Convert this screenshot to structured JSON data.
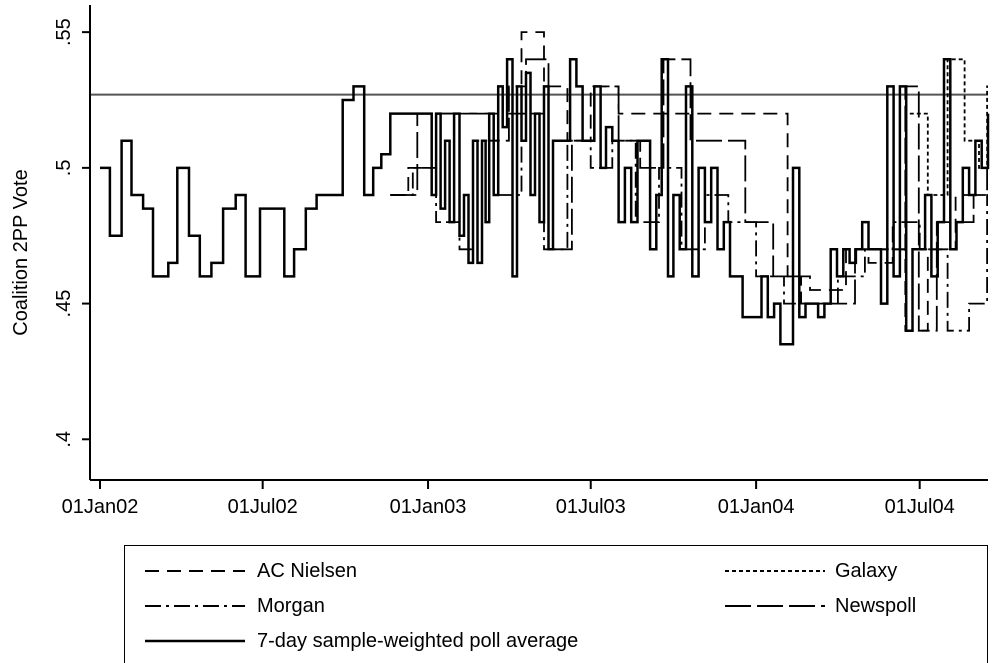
{
  "chart_data": {
    "type": "line",
    "title": "",
    "xlabel": "",
    "ylabel": "Coalition 2PP Vote",
    "x_range": [
      "2002-01-01",
      "2004-09-15"
    ],
    "ylim": [
      0.385,
      0.56
    ],
    "x_ticks": [
      {
        "date": "2002-01-01",
        "label": "01Jan02"
      },
      {
        "date": "2002-07-01",
        "label": "01Jul02"
      },
      {
        "date": "2003-01-01",
        "label": "01Jan03"
      },
      {
        "date": "2003-07-01",
        "label": "01Jul03"
      },
      {
        "date": "2004-01-01",
        "label": "01Jan04"
      },
      {
        "date": "2004-07-01",
        "label": "01Jul04"
      }
    ],
    "y_ticks": [
      {
        "value": 0.4,
        "label": ".4"
      },
      {
        "value": 0.45,
        "label": ".45"
      },
      {
        "value": 0.5,
        "label": ".5"
      },
      {
        "value": 0.55,
        "label": ".55"
      }
    ],
    "reference_line": {
      "y": 0.527,
      "color": "#555555"
    },
    "grid": false,
    "legend_position": "bottom",
    "series": [
      {
        "name": "AC Nielsen",
        "dash": "long-dash",
        "points": [
          [
            "2002-11-20",
            0.49
          ],
          [
            "2002-12-10",
            0.5
          ],
          [
            "2003-01-05",
            0.52
          ],
          [
            "2003-02-01",
            0.52
          ],
          [
            "2003-03-20",
            0.52
          ],
          [
            "2003-04-15",
            0.55
          ],
          [
            "2003-05-10",
            0.53
          ],
          [
            "2003-06-05",
            0.51
          ],
          [
            "2003-07-01",
            0.53
          ],
          [
            "2003-08-01",
            0.52
          ],
          [
            "2003-09-10",
            0.52
          ],
          [
            "2003-10-10",
            0.52
          ],
          [
            "2003-11-15",
            0.52
          ],
          [
            "2003-12-15",
            0.52
          ],
          [
            "2004-01-20",
            0.52
          ],
          [
            "2004-02-05",
            0.46
          ],
          [
            "2004-03-01",
            0.455
          ],
          [
            "2004-04-10",
            0.47
          ],
          [
            "2004-05-05",
            0.465
          ],
          [
            "2004-06-01",
            0.47
          ],
          [
            "2004-06-15",
            0.44
          ],
          [
            "2004-07-10",
            0.47
          ],
          [
            "2004-08-10",
            0.49
          ],
          [
            "2004-09-01",
            0.5
          ]
        ]
      },
      {
        "name": "Galaxy",
        "dash": "short-dash",
        "points": [
          [
            "2004-06-20",
            0.52
          ],
          [
            "2004-07-10",
            0.49
          ],
          [
            "2004-08-01",
            0.54
          ],
          [
            "2004-08-20",
            0.51
          ],
          [
            "2004-09-05",
            0.5
          ],
          [
            "2004-09-14",
            0.53
          ]
        ]
      },
      {
        "name": "Morgan",
        "dash": "dash-dot",
        "points": [
          [
            "2002-11-20",
            0.49
          ],
          [
            "2002-12-15",
            0.5
          ],
          [
            "2003-01-10",
            0.48
          ],
          [
            "2003-02-05",
            0.47
          ],
          [
            "2003-02-25",
            0.51
          ],
          [
            "2003-03-20",
            0.49
          ],
          [
            "2003-04-15",
            0.52
          ],
          [
            "2003-05-10",
            0.47
          ],
          [
            "2003-06-05",
            0.51
          ],
          [
            "2003-07-01",
            0.5
          ],
          [
            "2003-07-25",
            0.51
          ],
          [
            "2003-08-20",
            0.48
          ],
          [
            "2003-09-15",
            0.5
          ],
          [
            "2003-10-10",
            0.47
          ],
          [
            "2003-11-05",
            0.49
          ],
          [
            "2003-12-01",
            0.48
          ],
          [
            "2004-01-01",
            0.46
          ],
          [
            "2004-02-01",
            0.45
          ],
          [
            "2004-03-01",
            0.45
          ],
          [
            "2004-04-01",
            0.46
          ],
          [
            "2004-05-01",
            0.47
          ],
          [
            "2004-06-01",
            0.48
          ],
          [
            "2004-07-01",
            0.47
          ],
          [
            "2004-08-01",
            0.44
          ],
          [
            "2004-08-25",
            0.45
          ],
          [
            "2004-09-14",
            0.49
          ]
        ]
      },
      {
        "name": "Newspoll",
        "dash": "longer-dash",
        "points": [
          [
            "2002-11-20",
            0.49
          ],
          [
            "2002-12-20",
            0.52
          ],
          [
            "2003-02-01",
            0.52
          ],
          [
            "2003-03-10",
            0.51
          ],
          [
            "2003-04-01",
            0.53
          ],
          [
            "2003-04-20",
            0.54
          ],
          [
            "2003-05-15",
            0.47
          ],
          [
            "2003-06-10",
            0.51
          ],
          [
            "2003-07-05",
            0.53
          ],
          [
            "2003-08-01",
            0.51
          ],
          [
            "2003-08-25",
            0.5
          ],
          [
            "2003-09-20",
            0.54
          ],
          [
            "2003-10-20",
            0.51
          ],
          [
            "2003-11-20",
            0.51
          ],
          [
            "2003-12-20",
            0.48
          ],
          [
            "2004-01-20",
            0.46
          ],
          [
            "2004-02-20",
            0.45
          ],
          [
            "2004-03-20",
            0.45
          ],
          [
            "2004-04-20",
            0.47
          ],
          [
            "2004-05-20",
            0.47
          ],
          [
            "2004-06-15",
            0.53
          ],
          [
            "2004-06-30",
            0.44
          ],
          [
            "2004-07-20",
            0.48
          ],
          [
            "2004-08-10",
            0.48
          ],
          [
            "2004-08-30",
            0.49
          ],
          [
            "2004-09-14",
            0.5
          ]
        ]
      },
      {
        "name": "7-day sample-weighted poll average",
        "dash": "solid",
        "points": [
          [
            "2002-01-01",
            0.5
          ],
          [
            "2002-01-12",
            0.475
          ],
          [
            "2002-01-25",
            0.51
          ],
          [
            "2002-02-05",
            0.49
          ],
          [
            "2002-02-18",
            0.485
          ],
          [
            "2002-03-01",
            0.46
          ],
          [
            "2002-03-18",
            0.465
          ],
          [
            "2002-03-28",
            0.5
          ],
          [
            "2002-04-10",
            0.475
          ],
          [
            "2002-04-22",
            0.46
          ],
          [
            "2002-05-05",
            0.465
          ],
          [
            "2002-05-18",
            0.485
          ],
          [
            "2002-06-01",
            0.49
          ],
          [
            "2002-06-12",
            0.46
          ],
          [
            "2002-06-28",
            0.485
          ],
          [
            "2002-07-10",
            0.485
          ],
          [
            "2002-07-25",
            0.46
          ],
          [
            "2002-08-05",
            0.47
          ],
          [
            "2002-08-18",
            0.485
          ],
          [
            "2002-08-30",
            0.49
          ],
          [
            "2002-09-15",
            0.49
          ],
          [
            "2002-09-28",
            0.525
          ],
          [
            "2002-10-10",
            0.53
          ],
          [
            "2002-10-22",
            0.49
          ],
          [
            "2002-11-01",
            0.5
          ],
          [
            "2002-11-10",
            0.505
          ],
          [
            "2002-11-20",
            0.52
          ],
          [
            "2002-12-05",
            0.52
          ],
          [
            "2002-12-20",
            0.52
          ],
          [
            "2003-01-01",
            0.52
          ],
          [
            "2003-01-05",
            0.49
          ],
          [
            "2003-01-10",
            0.52
          ],
          [
            "2003-01-15",
            0.485
          ],
          [
            "2003-01-20",
            0.51
          ],
          [
            "2003-01-25",
            0.48
          ],
          [
            "2003-01-30",
            0.52
          ],
          [
            "2003-02-05",
            0.475
          ],
          [
            "2003-02-10",
            0.49
          ],
          [
            "2003-02-15",
            0.465
          ],
          [
            "2003-02-20",
            0.51
          ],
          [
            "2003-02-25",
            0.465
          ],
          [
            "2003-03-02",
            0.51
          ],
          [
            "2003-03-06",
            0.48
          ],
          [
            "2003-03-10",
            0.52
          ],
          [
            "2003-03-15",
            0.49
          ],
          [
            "2003-03-20",
            0.53
          ],
          [
            "2003-03-25",
            0.515
          ],
          [
            "2003-03-30",
            0.54
          ],
          [
            "2003-04-05",
            0.46
          ],
          [
            "2003-04-10",
            0.53
          ],
          [
            "2003-04-15",
            0.51
          ],
          [
            "2003-04-20",
            0.535
          ],
          [
            "2003-04-25",
            0.49
          ],
          [
            "2003-04-30",
            0.52
          ],
          [
            "2003-05-05",
            0.48
          ],
          [
            "2003-05-10",
            0.53
          ],
          [
            "2003-05-15",
            0.47
          ],
          [
            "2003-05-20",
            0.51
          ],
          [
            "2003-05-25",
            0.51
          ],
          [
            "2003-06-01",
            0.51
          ],
          [
            "2003-06-08",
            0.54
          ],
          [
            "2003-06-15",
            0.53
          ],
          [
            "2003-06-22",
            0.51
          ],
          [
            "2003-06-29",
            0.51
          ],
          [
            "2003-07-05",
            0.53
          ],
          [
            "2003-07-12",
            0.5
          ],
          [
            "2003-07-18",
            0.515
          ],
          [
            "2003-07-25",
            0.51
          ],
          [
            "2003-08-01",
            0.48
          ],
          [
            "2003-08-08",
            0.5
          ],
          [
            "2003-08-15",
            0.48
          ],
          [
            "2003-08-22",
            0.51
          ],
          [
            "2003-08-29",
            0.51
          ],
          [
            "2003-09-05",
            0.47
          ],
          [
            "2003-09-12",
            0.49
          ],
          [
            "2003-09-18",
            0.54
          ],
          [
            "2003-09-25",
            0.46
          ],
          [
            "2003-10-01",
            0.49
          ],
          [
            "2003-10-08",
            0.47
          ],
          [
            "2003-10-15",
            0.53
          ],
          [
            "2003-10-22",
            0.46
          ],
          [
            "2003-10-29",
            0.5
          ],
          [
            "2003-11-05",
            0.48
          ],
          [
            "2003-11-12",
            0.5
          ],
          [
            "2003-11-19",
            0.47
          ],
          [
            "2003-11-26",
            0.48
          ],
          [
            "2003-12-03",
            0.46
          ],
          [
            "2003-12-10",
            0.46
          ],
          [
            "2003-12-17",
            0.445
          ],
          [
            "2003-12-24",
            0.445
          ],
          [
            "2003-12-31",
            0.445
          ],
          [
            "2004-01-07",
            0.46
          ],
          [
            "2004-01-14",
            0.445
          ],
          [
            "2004-01-21",
            0.45
          ],
          [
            "2004-01-28",
            0.435
          ],
          [
            "2004-02-04",
            0.435
          ],
          [
            "2004-02-11",
            0.5
          ],
          [
            "2004-02-18",
            0.445
          ],
          [
            "2004-02-25",
            0.45
          ],
          [
            "2004-03-03",
            0.45
          ],
          [
            "2004-03-10",
            0.445
          ],
          [
            "2004-03-17",
            0.45
          ],
          [
            "2004-03-24",
            0.47
          ],
          [
            "2004-03-31",
            0.46
          ],
          [
            "2004-04-07",
            0.47
          ],
          [
            "2004-04-14",
            0.465
          ],
          [
            "2004-04-21",
            0.47
          ],
          [
            "2004-04-28",
            0.48
          ],
          [
            "2004-05-05",
            0.47
          ],
          [
            "2004-05-12",
            0.47
          ],
          [
            "2004-05-19",
            0.45
          ],
          [
            "2004-05-26",
            0.53
          ],
          [
            "2004-06-02",
            0.46
          ],
          [
            "2004-06-09",
            0.53
          ],
          [
            "2004-06-16",
            0.44
          ],
          [
            "2004-06-23",
            0.47
          ],
          [
            "2004-06-30",
            0.47
          ],
          [
            "2004-07-07",
            0.49
          ],
          [
            "2004-07-14",
            0.46
          ],
          [
            "2004-07-21",
            0.48
          ],
          [
            "2004-07-28",
            0.54
          ],
          [
            "2004-08-04",
            0.47
          ],
          [
            "2004-08-11",
            0.48
          ],
          [
            "2004-08-18",
            0.5
          ],
          [
            "2004-08-25",
            0.49
          ],
          [
            "2004-09-01",
            0.51
          ],
          [
            "2004-09-08",
            0.5
          ],
          [
            "2004-09-15",
            0.52
          ]
        ]
      }
    ]
  }
}
